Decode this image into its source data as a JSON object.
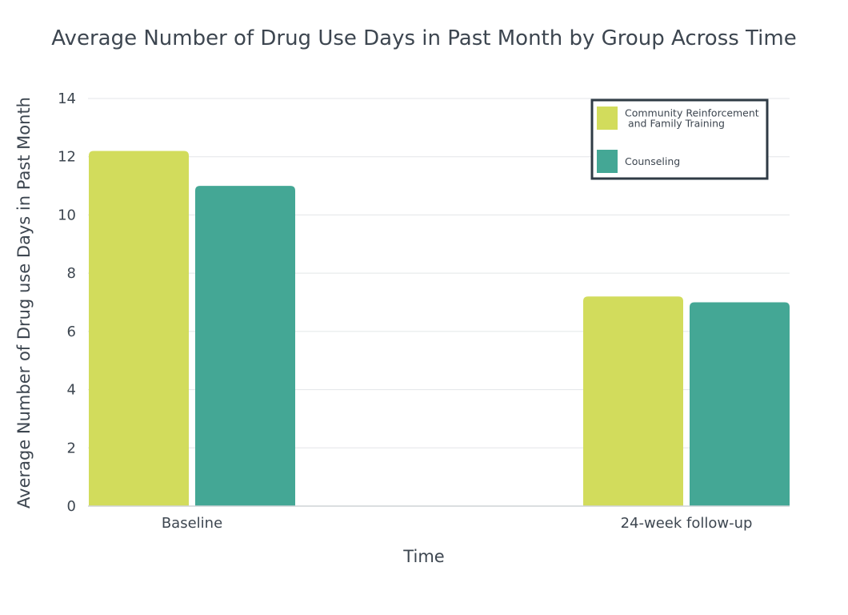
{
  "chart_data": {
    "type": "bar",
    "title": "Average Number of Drug Use Days in Past Month by Group Across Time",
    "xlabel": "Time",
    "ylabel": "Average Number of Drug use Days in Past Month",
    "categories": [
      "Baseline",
      "24-week follow-up"
    ],
    "series": [
      {
        "name": "Community Reinforcement and Family Training",
        "legend_lines": [
          "Community Reinforcement",
          " and Family Training"
        ],
        "color": "#d2dc5c",
        "values": [
          12.2,
          7.2
        ]
      },
      {
        "name": "Counseling",
        "legend_lines": [
          "Counseling"
        ],
        "color": "#44a795",
        "values": [
          11.0,
          7.0
        ]
      }
    ],
    "ylim": [
      0,
      14
    ],
    "yticks": [
      0,
      2,
      4,
      6,
      8,
      10,
      12,
      14
    ],
    "grid": true,
    "legend_position": "top-right"
  }
}
